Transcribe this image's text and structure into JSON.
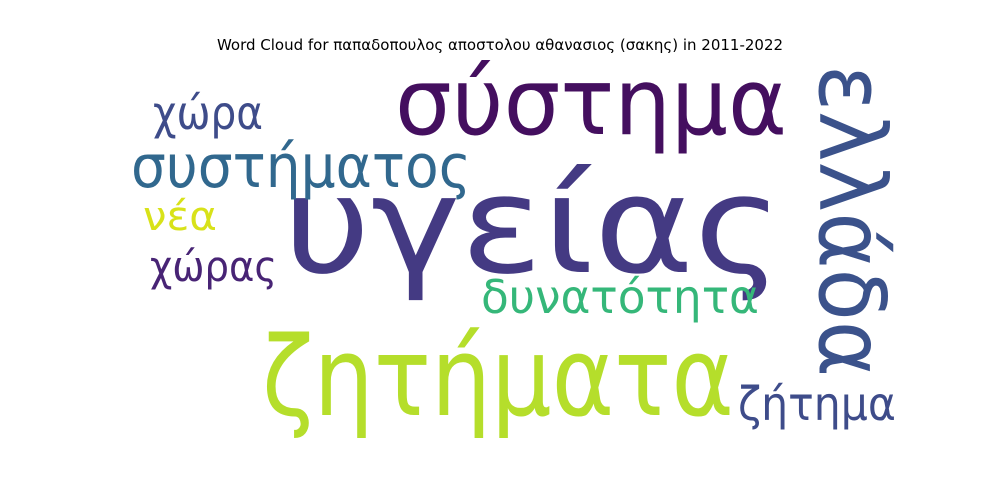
{
  "chart_data": {
    "type": "wordcloud",
    "title": "Word Cloud for παπαδοπουλος αποστολου αθανασιος (σακης) in 2011-2022",
    "words": [
      {
        "text": "υγείας",
        "rank": 1,
        "color": "#443a83"
      },
      {
        "text": "ζητήματα",
        "rank": 2,
        "color": "#b5de2b"
      },
      {
        "text": "σύστημα",
        "rank": 3,
        "color": "#440f5f"
      },
      {
        "text": "ελλάδα",
        "rank": 4,
        "color": "#3b528b"
      },
      {
        "text": "συστήματος",
        "rank": 5,
        "color": "#31688e"
      },
      {
        "text": "δυνατότητα",
        "rank": 6,
        "color": "#35b779"
      },
      {
        "text": "ζήτημα",
        "rank": 7,
        "color": "#3e4c8a"
      },
      {
        "text": "χώρα",
        "rank": 8,
        "color": "#3e4c8a"
      },
      {
        "text": "χώρας",
        "rank": 9,
        "color": "#482475"
      },
      {
        "text": "νέα",
        "rank": 10,
        "color": "#d8e219"
      }
    ]
  }
}
